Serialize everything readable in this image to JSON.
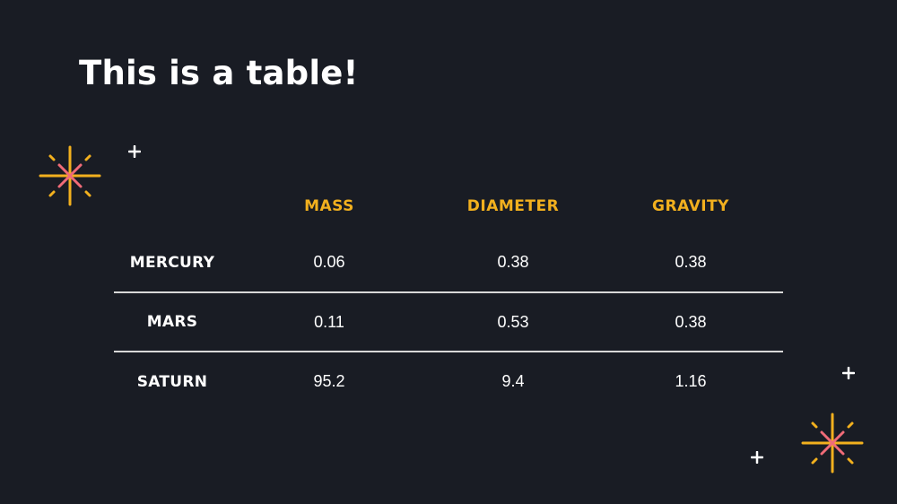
{
  "title": "This is a table!",
  "table": {
    "columns": [
      "MASS",
      "DIAMETER",
      "GRAVITY"
    ],
    "rows": [
      {
        "name": "MERCURY",
        "values": [
          "0.06",
          "0.38",
          "0.38"
        ]
      },
      {
        "name": "MARS",
        "values": [
          "0.11",
          "0.53",
          "0.38"
        ]
      },
      {
        "name": "SATURN",
        "values": [
          "95.2",
          "9.4",
          "1.16"
        ]
      }
    ]
  },
  "colors": {
    "background": "#191c24",
    "header": "#f2b01e",
    "text": "#ffffff",
    "divider": "#d8d8d8",
    "star_gold": "#f2b01e",
    "star_pink": "#f06b78"
  },
  "decorations": [
    "sparkle-star-icon",
    "plus-sparkle-icon"
  ]
}
